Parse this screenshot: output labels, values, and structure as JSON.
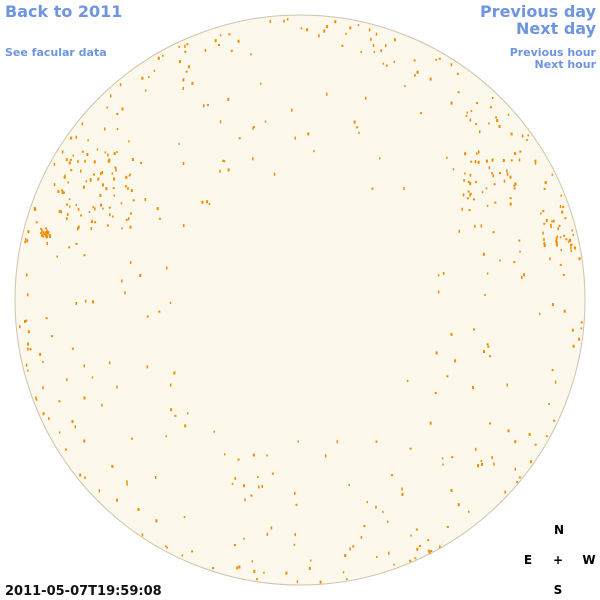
{
  "navigation": {
    "back_to_year": "Back to 2011",
    "facular_data": "See facular data",
    "previous_day": "Previous day",
    "next_day": "Next day",
    "previous_hour": "Previous hour",
    "next_hour": "Next hour"
  },
  "compass": {
    "north": "N",
    "east": "E",
    "center": "+",
    "west": "W",
    "south": "S"
  },
  "timestamp": "2011-05-07T19:59:08"
}
